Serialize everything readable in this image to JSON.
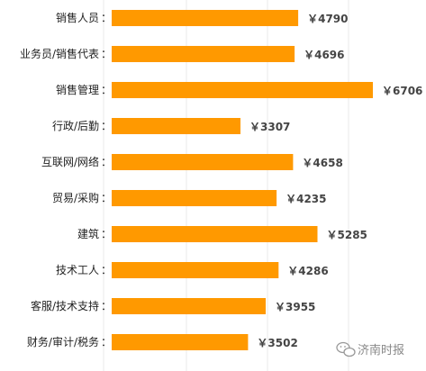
{
  "chart_data": {
    "type": "bar",
    "orientation": "horizontal",
    "categories": [
      "销售人员",
      "业务员/销售代表",
      "销售管理",
      "行政/后勤",
      "互联网/网络",
      "贸易/采购",
      "建筑",
      "技术工人",
      "客服/技术支持",
      "财务/审计/税务"
    ],
    "values": [
      4790,
      4696,
      6706,
      3307,
      4658,
      4235,
      5285,
      4286,
      3955,
      3502
    ],
    "value_labels": [
      "￥4790",
      "￥4696",
      "￥6706",
      "￥3307",
      "￥4658",
      "￥4235",
      "￥5285",
      "￥4286",
      "￥3955",
      "￥3502"
    ],
    "separator": "：",
    "title": "",
    "xlabel": "",
    "ylabel": "",
    "xlim": [
      0,
      6706
    ],
    "grid": true,
    "bar_color": "#FF9900"
  },
  "watermark": {
    "text": "济南时报",
    "icon": "wechat-icon"
  }
}
